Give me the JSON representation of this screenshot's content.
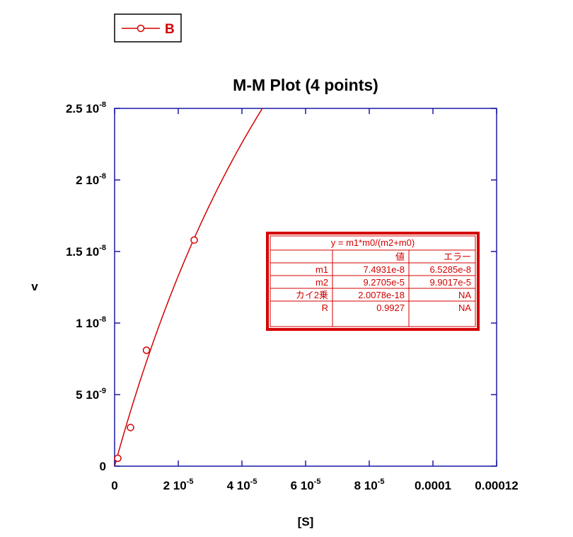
{
  "chart_data": {
    "type": "scatter",
    "title": "M-M Plot (4 points)",
    "xlabel": "[S]",
    "ylabel": "v",
    "xlim": [
      0,
      0.00012
    ],
    "ylim": [
      0,
      2.5e-08
    ],
    "x_ticks": [
      {
        "value": 0,
        "mantissa": "0",
        "exponent": ""
      },
      {
        "value": 2e-05,
        "mantissa": "2 10",
        "exponent": "-5"
      },
      {
        "value": 4e-05,
        "mantissa": "4 10",
        "exponent": "-5"
      },
      {
        "value": 6e-05,
        "mantissa": "6 10",
        "exponent": "-5"
      },
      {
        "value": 8e-05,
        "mantissa": "8 10",
        "exponent": "-5"
      },
      {
        "value": 0.0001,
        "mantissa": "0.0001",
        "exponent": ""
      },
      {
        "value": 0.00012,
        "mantissa": "0.00012",
        "exponent": ""
      }
    ],
    "y_ticks": [
      {
        "value": 0,
        "mantissa": "0",
        "exponent": ""
      },
      {
        "value": 5e-09,
        "mantissa": "5 10",
        "exponent": "-9"
      },
      {
        "value": 1e-08,
        "mantissa": "1 10",
        "exponent": "-8"
      },
      {
        "value": 1.5e-08,
        "mantissa": "1.5 10",
        "exponent": "-8"
      },
      {
        "value": 2e-08,
        "mantissa": "2 10",
        "exponent": "-8"
      },
      {
        "value": 2.5e-08,
        "mantissa": "2.5 10",
        "exponent": "-8"
      }
    ],
    "series": [
      {
        "name": "B",
        "color": "#d40000",
        "marker": "open-circle",
        "x": [
          1e-06,
          5e-06,
          1e-05,
          2.5e-05
        ],
        "y": [
          5.5e-10,
          2.7e-09,
          8.1e-09,
          1.58e-08
        ]
      }
    ],
    "fit": {
      "equation": "y = m1*m0/(m2+m0)",
      "m1": 7.4931e-08,
      "m2": 9.2705e-05,
      "color": "#d40000"
    },
    "fit_table": {
      "header": [
        "",
        "値",
        "エラー"
      ],
      "rows": [
        [
          "m1",
          "7.4931e-8",
          "6.5285e-8"
        ],
        [
          "m2",
          "9.2705e-5",
          "9.9017e-5"
        ],
        [
          "カイ2乗",
          "2.0078e-18",
          "NA"
        ],
        [
          "R",
          "0.9927",
          "NA"
        ]
      ]
    },
    "legend_position": "top-left",
    "grid": false,
    "axis_color": "#1a1aa6"
  }
}
